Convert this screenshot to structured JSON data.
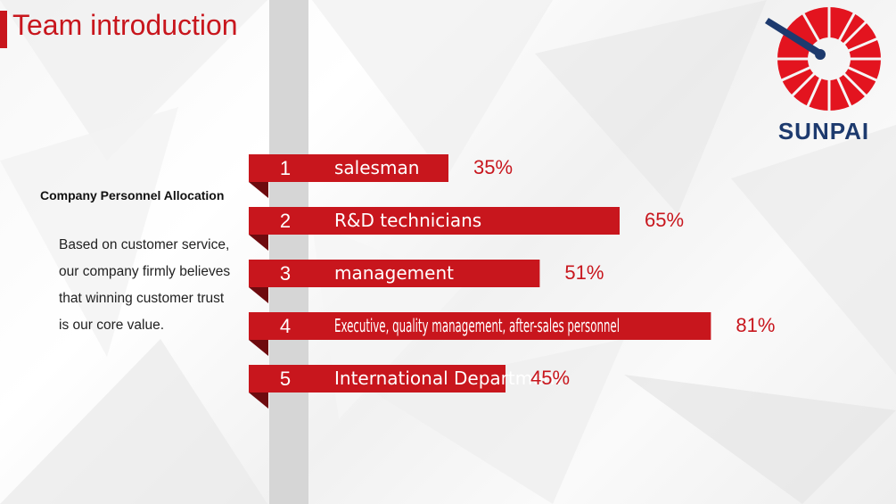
{
  "slide": {
    "title": "Team introduction",
    "subtitle": "Company Personnel Allocation",
    "description": "Based on customer service, our company firmly believes that winning customer trust is our core value."
  },
  "logo": {
    "text": "SUNPAI",
    "icon": "sunpai-gauge-logo"
  },
  "colors": {
    "accent": "#c8161d",
    "logo_blue": "#1d3a6e",
    "stripe": "#d6d6d6"
  },
  "chart_data": {
    "type": "bar",
    "orientation": "horizontal",
    "categories": [
      "salesman",
      "R&D technicians",
      "management",
      "Executive, quality management, after-sales personnel",
      "International Department"
    ],
    "numbers": [
      "1",
      "2",
      "3",
      "4",
      "5"
    ],
    "values": [
      35,
      65,
      51,
      81,
      45
    ],
    "value_labels": [
      "35%",
      "65%",
      "51%",
      "81%",
      "45%"
    ],
    "xlim": [
      0,
      100
    ],
    "grid": false,
    "legend": "none"
  }
}
